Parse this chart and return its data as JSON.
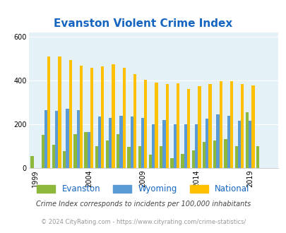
{
  "title": "Evanston Violent Crime Index",
  "subtitle": "Crime Index corresponds to incidents per 100,000 inhabitants",
  "footer": "© 2024 CityRating.com - https://www.cityrating.com/crime-statistics/",
  "years": [
    1999,
    2000,
    2001,
    2002,
    2003,
    2004,
    2005,
    2006,
    2007,
    2008,
    2009,
    2010,
    2011,
    2012,
    2013,
    2014,
    2015,
    2016,
    2017,
    2018,
    2019,
    2020,
    2021
  ],
  "evanston": [
    55,
    150,
    105,
    75,
    155,
    165,
    100,
    125,
    155,
    95,
    100,
    60,
    100,
    45,
    65,
    80,
    120,
    125,
    130,
    100,
    255,
    100,
    0
  ],
  "wyoming": [
    0,
    265,
    260,
    270,
    265,
    165,
    235,
    230,
    240,
    235,
    230,
    200,
    220,
    200,
    200,
    200,
    225,
    245,
    240,
    215,
    215,
    0,
    0
  ],
  "national": [
    0,
    510,
    510,
    495,
    470,
    460,
    465,
    475,
    460,
    430,
    405,
    390,
    385,
    388,
    362,
    373,
    383,
    397,
    397,
    383,
    378,
    0,
    0
  ],
  "evanston_color": "#8db83b",
  "wyoming_color": "#5b9bd5",
  "national_color": "#ffc000",
  "bg_color": "#e4f1f7",
  "ylim": [
    0,
    620
  ],
  "yticks": [
    0,
    200,
    400,
    600
  ],
  "xlabel_years": [
    1999,
    2004,
    2009,
    2014,
    2019
  ],
  "title_color": "#1565c0",
  "subtitle_color": "#444444",
  "footer_color": "#999999"
}
